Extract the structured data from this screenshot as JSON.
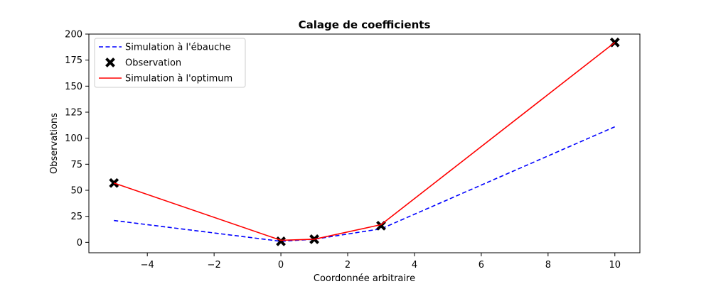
{
  "chart_data": {
    "type": "line",
    "title": "Calage de coefficients",
    "xlabel": "Coordonnée arbitraire",
    "ylabel": "Observations",
    "xlim": [
      -5.75,
      10.75
    ],
    "ylim": [
      -10,
      200
    ],
    "xticks": [
      -4,
      -2,
      0,
      2,
      4,
      6,
      8,
      10
    ],
    "yticks": [
      0,
      25,
      50,
      75,
      100,
      125,
      150,
      175,
      200
    ],
    "grid": false,
    "legend_position": "top-left",
    "series": [
      {
        "name": "Simulation à l'ébauche",
        "style": "dashed-line",
        "color": "#0000ff",
        "x": [
          -5,
          0,
          1,
          3,
          10
        ],
        "y": [
          21,
          1,
          3,
          13,
          111
        ]
      },
      {
        "name": "Observation",
        "style": "x-marker",
        "color": "#000000",
        "x": [
          -5,
          0,
          1,
          3,
          10
        ],
        "y": [
          57,
          1,
          3,
          16,
          192
        ]
      },
      {
        "name": "Simulation à l'optimum",
        "style": "solid-line",
        "color": "#ff0000",
        "x": [
          -5,
          0,
          1,
          3,
          10
        ],
        "y": [
          57,
          2,
          3,
          17,
          192
        ]
      }
    ]
  }
}
